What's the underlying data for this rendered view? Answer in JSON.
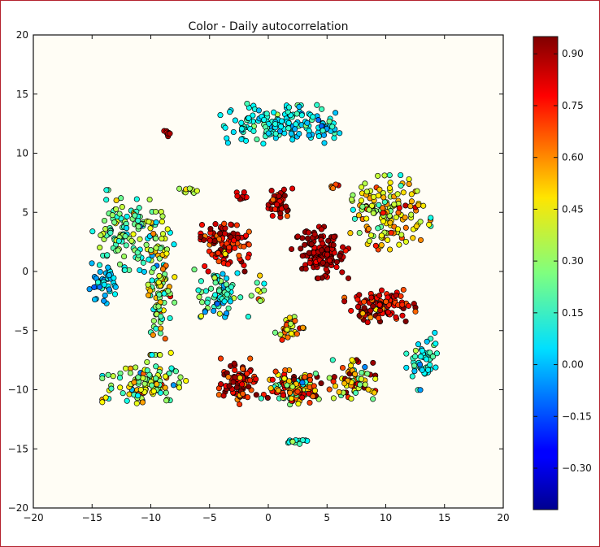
{
  "chart_data": {
    "type": "scatter",
    "title": "Color - Daily autocorrelation",
    "xlabel": "",
    "ylabel": "",
    "xlim": [
      -20,
      20
    ],
    "ylim": [
      -20,
      20
    ],
    "x_ticks": [
      -20,
      -15,
      -10,
      -5,
      0,
      5,
      10,
      15,
      20
    ],
    "y_ticks": [
      -20,
      -15,
      -10,
      -5,
      0,
      5,
      10,
      15,
      20
    ],
    "x_tick_labels": [
      "−20",
      "−15",
      "−10",
      "−5",
      "0",
      "5",
      "10",
      "15",
      "20"
    ],
    "y_tick_labels": [
      "−20",
      "−15",
      "−10",
      "−5",
      "0",
      "5",
      "10",
      "15",
      "20"
    ],
    "grid": false,
    "colorbar": {
      "label": "",
      "range": [
        -0.42,
        0.95
      ],
      "ticks": [
        0.9,
        0.75,
        0.6,
        0.45,
        0.3,
        0.15,
        0.0,
        -0.15,
        -0.3
      ],
      "tick_labels": [
        "0.90",
        "0.75",
        "0.60",
        "0.45",
        "0.30",
        "0.15",
        "0.00",
        "−0.15",
        "−0.30"
      ],
      "colormap": "jet"
    },
    "marker": {
      "edge_color": "#000000",
      "shape": "circle"
    },
    "clusters": [
      {
        "center": [
          1.0,
          12.5
        ],
        "spread": [
          4.2,
          1.4
        ],
        "n": 150,
        "value_mean": 0.1,
        "value_sd": 0.08
      },
      {
        "center": [
          4.8,
          12.3
        ],
        "spread": [
          0.8,
          0.6
        ],
        "n": 14,
        "value_mean": 0.05,
        "value_sd": 0.08
      },
      {
        "center": [
          -8.6,
          11.5
        ],
        "spread": [
          0.3,
          0.6
        ],
        "n": 8,
        "value_mean": 0.85,
        "value_sd": 0.05
      },
      {
        "center": [
          -12.3,
          3.5
        ],
        "spread": [
          2.2,
          2.8
        ],
        "n": 120,
        "value_mean": 0.22,
        "value_sd": 0.12
      },
      {
        "center": [
          -9.3,
          -1.0
        ],
        "spread": [
          1.1,
          5.0
        ],
        "n": 120,
        "value_mean": 0.32,
        "value_sd": 0.15
      },
      {
        "center": [
          -14.2,
          -1.0
        ],
        "spread": [
          1.0,
          1.4
        ],
        "n": 45,
        "value_mean": 0.02,
        "value_sd": 0.06
      },
      {
        "center": [
          -10.5,
          -9.5
        ],
        "spread": [
          3.0,
          1.6
        ],
        "n": 110,
        "value_mean": 0.35,
        "value_sd": 0.16
      },
      {
        "center": [
          -6.8,
          6.8
        ],
        "spread": [
          0.8,
          0.4
        ],
        "n": 10,
        "value_mean": 0.35,
        "value_sd": 0.08
      },
      {
        "center": [
          -4.0,
          -1.8
        ],
        "spread": [
          1.9,
          1.7
        ],
        "n": 70,
        "value_mean": 0.15,
        "value_sd": 0.12
      },
      {
        "center": [
          -3.7,
          2.3
        ],
        "spread": [
          1.7,
          1.9
        ],
        "n": 100,
        "value_mean": 0.8,
        "value_sd": 0.12
      },
      {
        "center": [
          -2.2,
          6.4
        ],
        "spread": [
          0.5,
          0.4
        ],
        "n": 8,
        "value_mean": 0.85,
        "value_sd": 0.06
      },
      {
        "center": [
          1.0,
          5.8
        ],
        "spread": [
          1.2,
          1.0
        ],
        "n": 40,
        "value_mean": 0.82,
        "value_sd": 0.1
      },
      {
        "center": [
          4.4,
          1.6
        ],
        "spread": [
          2.0,
          1.8
        ],
        "n": 130,
        "value_mean": 0.88,
        "value_sd": 0.05
      },
      {
        "center": [
          10.2,
          5.0
        ],
        "spread": [
          3.0,
          2.6
        ],
        "n": 150,
        "value_mean": 0.45,
        "value_sd": 0.16
      },
      {
        "center": [
          9.5,
          -3.0
        ],
        "spread": [
          2.5,
          1.2
        ],
        "n": 100,
        "value_mean": 0.82,
        "value_sd": 0.12
      },
      {
        "center": [
          1.8,
          -4.7
        ],
        "spread": [
          1.0,
          0.9
        ],
        "n": 30,
        "value_mean": 0.55,
        "value_sd": 0.15
      },
      {
        "center": [
          -2.5,
          -9.3
        ],
        "spread": [
          1.4,
          1.6
        ],
        "n": 80,
        "value_mean": 0.82,
        "value_sd": 0.12
      },
      {
        "center": [
          2.3,
          -9.8
        ],
        "spread": [
          2.4,
          1.2
        ],
        "n": 140,
        "value_mean": 0.55,
        "value_sd": 0.25
      },
      {
        "center": [
          7.3,
          -9.3
        ],
        "spread": [
          1.5,
          1.5
        ],
        "n": 70,
        "value_mean": 0.55,
        "value_sd": 0.22
      },
      {
        "center": [
          13.2,
          -7.6
        ],
        "spread": [
          1.2,
          2.0
        ],
        "n": 50,
        "value_mean": 0.12,
        "value_sd": 0.08
      },
      {
        "center": [
          2.2,
          -14.4
        ],
        "spread": [
          1.0,
          0.15
        ],
        "n": 14,
        "value_mean": 0.15,
        "value_sd": 0.08
      },
      {
        "center": [
          -0.8,
          -1.8
        ],
        "spread": [
          0.7,
          1.2
        ],
        "n": 10,
        "value_mean": 0.4,
        "value_sd": 0.2
      },
      {
        "center": [
          5.5,
          7.2
        ],
        "spread": [
          0.5,
          0.4
        ],
        "n": 5,
        "value_mean": 0.7,
        "value_sd": 0.15
      }
    ]
  }
}
